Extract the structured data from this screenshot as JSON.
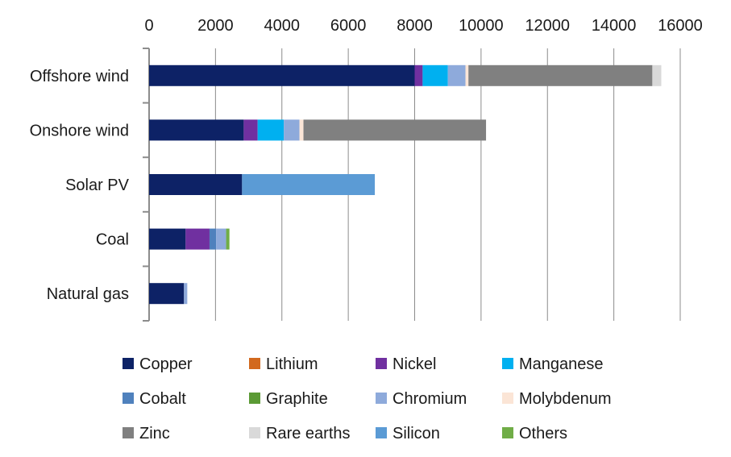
{
  "chart_data": {
    "type": "bar",
    "orientation": "horizontal",
    "stacked": true,
    "title": "",
    "xlabel": "",
    "ylabel": "",
    "xlim": [
      0,
      16000
    ],
    "x_ticks": [
      "0",
      "2000",
      "4000",
      "6000",
      "8000",
      "10000",
      "12000",
      "14000",
      "16000"
    ],
    "grid": true,
    "legend_position": "bottom",
    "categories": [
      "Offshore wind",
      "Onshore wind",
      "Solar PV",
      "Coal",
      "Natural gas"
    ],
    "series": [
      {
        "name": "Copper",
        "color": "#0d2266",
        "values": [
          8000,
          2850,
          2800,
          1100,
          1050
        ]
      },
      {
        "name": "Lithium",
        "color": "#d2691e",
        "values": [
          0,
          0,
          0,
          0,
          0
        ]
      },
      {
        "name": "Nickel",
        "color": "#7030a0",
        "values": [
          240,
          420,
          0,
          720,
          0
        ]
      },
      {
        "name": "Manganese",
        "color": "#00b0f0",
        "values": [
          760,
          790,
          0,
          0,
          0
        ]
      },
      {
        "name": "Cobalt",
        "color": "#4f81bd",
        "values": [
          0,
          0,
          0,
          200,
          0
        ]
      },
      {
        "name": "Graphite",
        "color": "#5b9a35",
        "values": [
          0,
          0,
          0,
          0,
          0
        ]
      },
      {
        "name": "Chromium",
        "color": "#8eaadb",
        "values": [
          530,
          470,
          0,
          300,
          100
        ]
      },
      {
        "name": "Molybdenum",
        "color": "#fbe5d6",
        "values": [
          90,
          120,
          0,
          0,
          0
        ]
      },
      {
        "name": "Zinc",
        "color": "#808080",
        "values": [
          5540,
          5500,
          0,
          0,
          0
        ]
      },
      {
        "name": "Rare earths",
        "color": "#d9d9d9",
        "values": [
          270,
          0,
          0,
          0,
          0
        ]
      },
      {
        "name": "Silicon",
        "color": "#5b9bd5",
        "values": [
          0,
          0,
          4000,
          0,
          0
        ]
      },
      {
        "name": "Others",
        "color": "#70ad47",
        "values": [
          0,
          0,
          0,
          100,
          0
        ]
      }
    ]
  }
}
